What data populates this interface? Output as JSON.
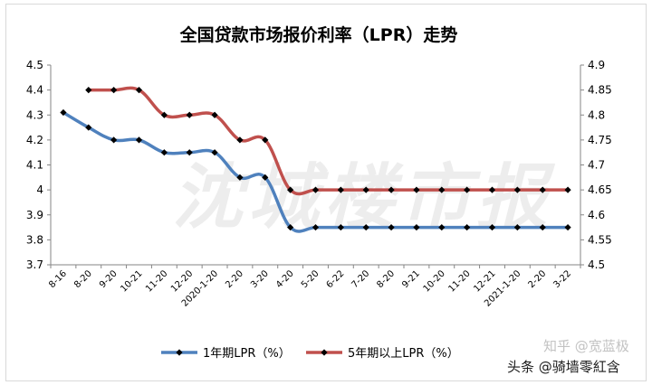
{
  "chart_data": {
    "type": "line",
    "title": "全国贷款市场报价利率（LPR）走势",
    "x": [
      "8-16",
      "8-20",
      "9-20",
      "10-21",
      "11-20",
      "12-20",
      "2020-1-20",
      "2-20",
      "3-20",
      "4-20",
      "5-20",
      "6-22",
      "7-20",
      "8-20",
      "9-21",
      "10-20",
      "11-20",
      "12-21",
      "2021-1-20",
      "2-20",
      "3-22"
    ],
    "ylim_left": [
      3.7,
      4.5
    ],
    "yticks_left": [
      "3.7",
      "3.8",
      "3.9",
      "4",
      "4.1",
      "4.2",
      "4.3",
      "4.4",
      "4.5"
    ],
    "ylim_right": [
      4.5,
      4.9
    ],
    "yticks_right": [
      "4.5",
      "4.55",
      "4.6",
      "4.65",
      "4.7",
      "4.75",
      "4.8",
      "4.85",
      "4.9"
    ],
    "series": [
      {
        "name": "1年期LPR（%）",
        "axis": "left",
        "color": "#4f81bd",
        "values": [
          4.31,
          4.25,
          4.2,
          4.2,
          4.15,
          4.15,
          4.15,
          4.05,
          4.05,
          3.85,
          3.85,
          3.85,
          3.85,
          3.85,
          3.85,
          3.85,
          3.85,
          3.85,
          3.85,
          3.85,
          3.85
        ]
      },
      {
        "name": "5年期以上LPR（%）",
        "axis": "right",
        "color": "#c0504d",
        "values": [
          null,
          4.85,
          4.85,
          4.85,
          4.8,
          4.8,
          4.8,
          4.75,
          4.75,
          4.65,
          4.65,
          4.65,
          4.65,
          4.65,
          4.65,
          4.65,
          4.65,
          4.65,
          4.65,
          4.65,
          4.65
        ]
      }
    ],
    "grid": false,
    "legend_position": "bottom"
  },
  "watermark": {
    "background_text": "沈城楼市报",
    "corner_text": "头条 @骑墙零紅含",
    "corner_faint_text": "知乎 @宽蓝极"
  }
}
